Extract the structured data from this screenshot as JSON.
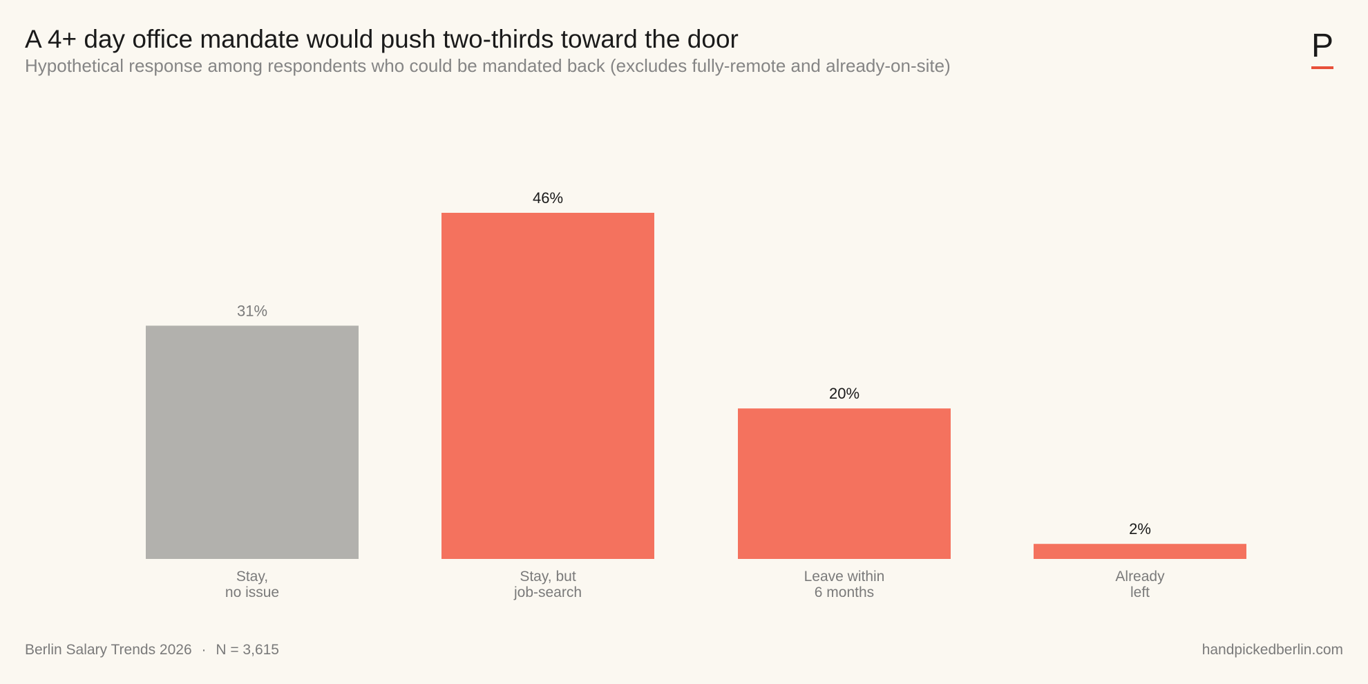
{
  "header": {
    "title": "A 4+ day office mandate would push two-thirds toward the door",
    "subtitle": "Hypothetical response among respondents who could be mandated back (excludes fully-remote and already-on-site)"
  },
  "footer": {
    "source": "Berlin Salary Trends 2026",
    "separator": "·",
    "sample": "N = 3,615",
    "site": "handpickedberlin.com"
  },
  "logo": {
    "letter": "P",
    "accent_color": "#e8503a"
  },
  "chart_data": {
    "type": "bar",
    "categories": [
      [
        "Stay,",
        "no issue"
      ],
      [
        "Stay, but",
        "job-search"
      ],
      [
        "Leave within",
        "6 months"
      ],
      [
        "Already",
        "left"
      ]
    ],
    "values": [
      31,
      46,
      20,
      2
    ],
    "value_labels": [
      "31%",
      "46%",
      "20%",
      "2%"
    ],
    "colors": [
      "#b2b1ad",
      "#f4725e",
      "#f4725e",
      "#f4725e"
    ],
    "label_colors": [
      "#7a7a7a",
      "#1a1a1a",
      "#1a1a1a",
      "#1a1a1a"
    ],
    "ylim": [
      0,
      46
    ],
    "grid": false,
    "legend": "none"
  }
}
